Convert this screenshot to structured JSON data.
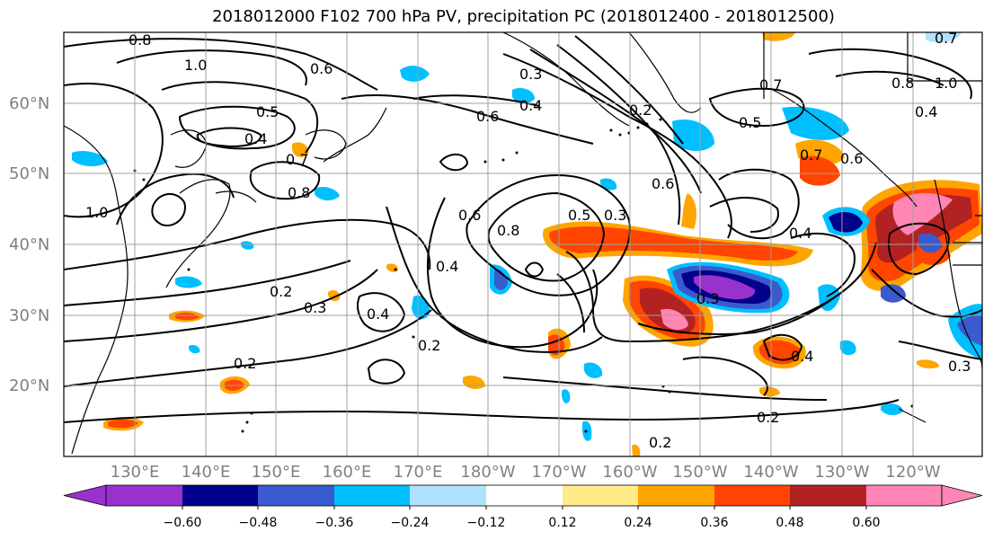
{
  "title": "2018012000 F102 700 hPa PV, precipitation PC (2018012400 - 2018012500)",
  "lat_labels": [
    "60°N",
    "50°N",
    "40°N",
    "30°N",
    "20°N"
  ],
  "lon_labels": [
    "130°E",
    "140°E",
    "150°E",
    "160°E",
    "170°E",
    "180°W",
    "170°W",
    "160°W",
    "150°W",
    "140°W",
    "130°W",
    "120°W"
  ],
  "contour_labels": [
    "0.8",
    "1.0",
    "0.6",
    "0.5",
    "0.4",
    "0.7",
    "0.8",
    "1.0",
    "0.4",
    "0.6",
    "0.3",
    "0.6",
    "0.8",
    "0.5",
    "0.3",
    "0.6",
    "0.4",
    "0.2",
    "0.3",
    "0.4",
    "0.2",
    "0.2",
    "0.3",
    "0.4",
    "0.2",
    "0.2",
    "0.3",
    "0.7",
    "0.8",
    "1.0",
    "0.4",
    "0.5",
    "0.7",
    "0.6",
    "0.4",
    "0.7",
    "0.2"
  ],
  "colorbar": {
    "ticks": [
      "−0.60",
      "−0.48",
      "−0.36",
      "−0.24",
      "−0.12",
      "0.12",
      "0.24",
      "0.36",
      "0.48",
      "0.60"
    ],
    "colors": [
      "#9932CC",
      "#00008B",
      "#3A5BCD",
      "#00BFFF",
      "#B0E2FF",
      "#FFFFFF",
      "#FFEB8A",
      "#FFA500",
      "#FF4500",
      "#B22222",
      "#FF86B5"
    ]
  }
}
